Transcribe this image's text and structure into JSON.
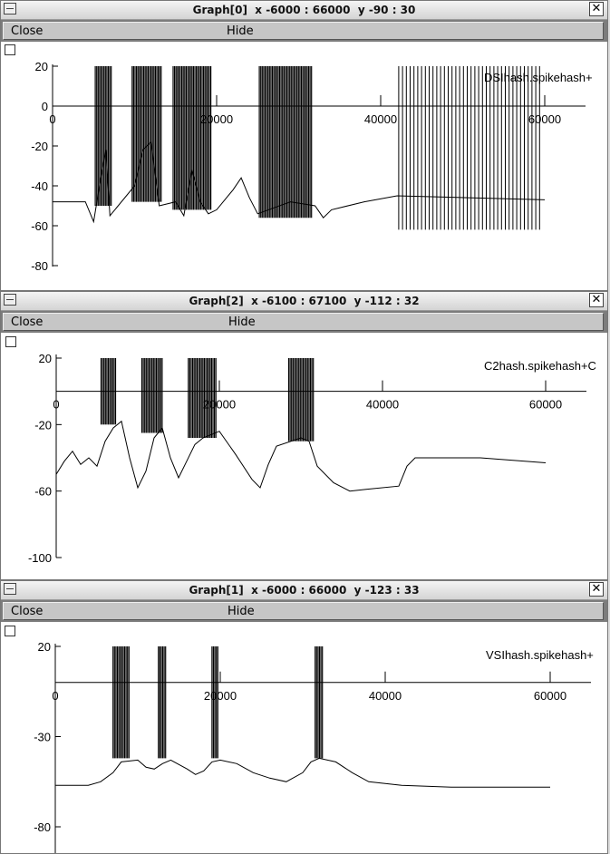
{
  "windows": [
    {
      "title": "Graph[0]  x -6000 : 66000  y -90 : 30",
      "close_label": "Close",
      "hide_label": "Hide",
      "series_label": "DSIhash.spikehash+",
      "chart_data": {
        "type": "line",
        "series_name": "DSIhash.spikehash+",
        "xlim": [
          -6000,
          66000
        ],
        "ylim": [
          -90,
          30
        ],
        "xticks": [
          0,
          20000,
          40000,
          60000
        ],
        "yticks": [
          20,
          0,
          -20,
          -40,
          -60,
          -80
        ],
        "baseline": [
          [
            0,
            -48
          ],
          [
            4000,
            -48
          ],
          [
            5000,
            -58
          ],
          [
            6000,
            -33
          ],
          [
            6500,
            -22
          ],
          [
            7000,
            -55
          ],
          [
            10000,
            -40
          ],
          [
            11000,
            -22
          ],
          [
            12000,
            -18
          ],
          [
            13000,
            -50
          ],
          [
            15000,
            -48
          ],
          [
            16000,
            -55
          ],
          [
            17000,
            -32
          ],
          [
            18000,
            -48
          ],
          [
            19000,
            -54
          ],
          [
            20000,
            -52
          ],
          [
            22000,
            -42
          ],
          [
            23000,
            -36
          ],
          [
            24000,
            -46
          ],
          [
            25000,
            -54
          ],
          [
            27000,
            -51
          ],
          [
            29000,
            -48
          ],
          [
            32000,
            -50
          ],
          [
            33000,
            -56
          ],
          [
            34000,
            -52
          ],
          [
            38000,
            -48
          ],
          [
            42000,
            -45
          ],
          [
            60000,
            -47
          ]
        ],
        "spike_bursts": [
          {
            "x_start": 5200,
            "x_end": 7300,
            "low": -50,
            "high": 20
          },
          {
            "x_start": 9700,
            "x_end": 13300,
            "low": -48,
            "high": 20
          },
          {
            "x_start": 14700,
            "x_end": 19300,
            "low": -52,
            "high": 20
          },
          {
            "x_start": 25200,
            "x_end": 31600,
            "low": -56,
            "high": 20
          },
          {
            "x_start": 42200,
            "x_end": 59800,
            "low": -62,
            "high": 20,
            "sparse": true
          }
        ]
      }
    },
    {
      "title": "Graph[2]  x -6100 : 67100  y -112 : 32",
      "close_label": "Close",
      "hide_label": "Hide",
      "series_label": "C2hash.spikehash+C",
      "chart_data": {
        "type": "line",
        "series_name": "C2hash.spikehash+C",
        "xlim": [
          -6100,
          67100
        ],
        "ylim": [
          -112,
          32
        ],
        "xticks": [
          0,
          20000,
          40000,
          60000
        ],
        "yticks": [
          20,
          -20,
          -60,
          -100
        ],
        "baseline": [
          [
            0,
            -50
          ],
          [
            1000,
            -42
          ],
          [
            2000,
            -36
          ],
          [
            3000,
            -44
          ],
          [
            4000,
            -40
          ],
          [
            5000,
            -45
          ],
          [
            6000,
            -30
          ],
          [
            7000,
            -22
          ],
          [
            8000,
            -18
          ],
          [
            9000,
            -40
          ],
          [
            10000,
            -58
          ],
          [
            11000,
            -48
          ],
          [
            12000,
            -28
          ],
          [
            13000,
            -22
          ],
          [
            14000,
            -40
          ],
          [
            15000,
            -52
          ],
          [
            16000,
            -42
          ],
          [
            17000,
            -32
          ],
          [
            18000,
            -28
          ],
          [
            20000,
            -24
          ],
          [
            22000,
            -38
          ],
          [
            24000,
            -53
          ],
          [
            25000,
            -58
          ],
          [
            26000,
            -44
          ],
          [
            27000,
            -33
          ],
          [
            30000,
            -28
          ],
          [
            31000,
            -30
          ],
          [
            32000,
            -45
          ],
          [
            34000,
            -55
          ],
          [
            36000,
            -60
          ],
          [
            38000,
            -59
          ],
          [
            42000,
            -57
          ],
          [
            43000,
            -45
          ],
          [
            44000,
            -40
          ],
          [
            52000,
            -40
          ],
          [
            60000,
            -43
          ]
        ],
        "spike_bursts": [
          {
            "x_start": 5500,
            "x_end": 7400,
            "low": -20,
            "high": 20
          },
          {
            "x_start": 10500,
            "x_end": 13100,
            "low": -25,
            "high": 20
          },
          {
            "x_start": 16200,
            "x_end": 19700,
            "low": -28,
            "high": 20
          },
          {
            "x_start": 28500,
            "x_end": 31600,
            "low": -30,
            "high": 20
          }
        ]
      }
    },
    {
      "title": "Graph[1]  x -6000 : 66000  y -123 : 33",
      "close_label": "Close",
      "hide_label": "Hide",
      "series_label": "VSIhash.spikehash+",
      "chart_data": {
        "type": "line",
        "series_name": "VSIhash.spikehash+",
        "xlim": [
          -6000,
          66000
        ],
        "ylim": [
          -123,
          33
        ],
        "xticks": [
          0,
          20000,
          40000,
          60000
        ],
        "yticks": [
          20,
          -30,
          -80
        ],
        "baseline": [
          [
            0,
            -57
          ],
          [
            4000,
            -57
          ],
          [
            5500,
            -55
          ],
          [
            7000,
            -50
          ],
          [
            8000,
            -44
          ],
          [
            10000,
            -43
          ],
          [
            11000,
            -47
          ],
          [
            12000,
            -48
          ],
          [
            13000,
            -45
          ],
          [
            14000,
            -43
          ],
          [
            16000,
            -48
          ],
          [
            17000,
            -51
          ],
          [
            18000,
            -49
          ],
          [
            19000,
            -44
          ],
          [
            20000,
            -43
          ],
          [
            22000,
            -45
          ],
          [
            24000,
            -50
          ],
          [
            26000,
            -53
          ],
          [
            28000,
            -55
          ],
          [
            30000,
            -50
          ],
          [
            31000,
            -44
          ],
          [
            32000,
            -42
          ],
          [
            34000,
            -44
          ],
          [
            36000,
            -50
          ],
          [
            38000,
            -55
          ],
          [
            42000,
            -57
          ],
          [
            48000,
            -58
          ],
          [
            60000,
            -58
          ]
        ],
        "spike_bursts": [
          {
            "x_start": 7000,
            "x_end": 9000,
            "low": -42,
            "high": 20
          },
          {
            "x_start": 12500,
            "x_end": 13500,
            "low": -42,
            "high": 20
          },
          {
            "x_start": 19000,
            "x_end": 19800,
            "low": -42,
            "high": 20
          },
          {
            "x_start": 31500,
            "x_end": 32500,
            "low": -42,
            "high": 20
          }
        ]
      }
    }
  ]
}
